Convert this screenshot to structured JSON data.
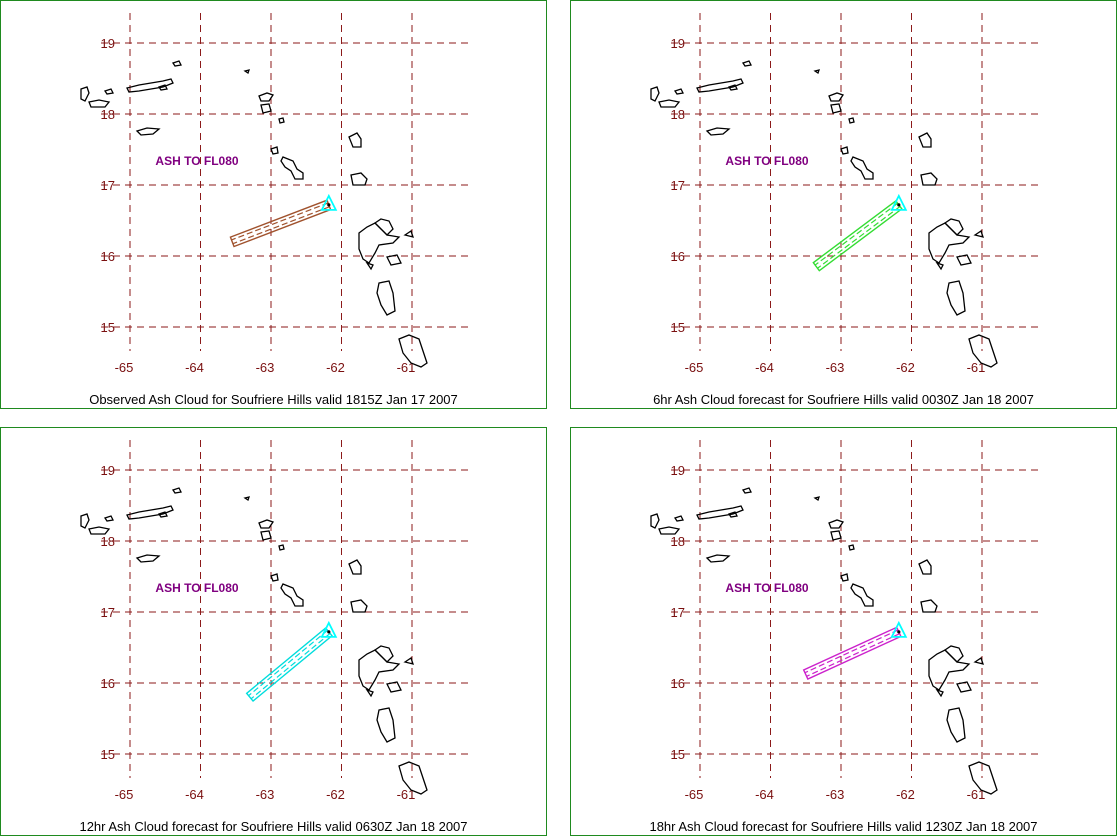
{
  "colors": {
    "grid": "#8b1a1a",
    "tick_text": "#7a1010",
    "coast": "#000000",
    "volcano": "#00ffff",
    "ash_label": "#800080",
    "border": "#1f8a1f"
  },
  "map": {
    "lon_ticks": [
      "-65",
      "-64",
      "-63",
      "-62",
      "-61"
    ],
    "lat_ticks": [
      "19",
      "18",
      "17",
      "16",
      "15"
    ],
    "lon_range": [
      -65,
      -61
    ],
    "lat_range": [
      15,
      19
    ]
  },
  "volcano": {
    "lon": -62.18,
    "lat": 16.72,
    "icon": "triangle-icon"
  },
  "panels": [
    {
      "label": "ASH TO FL080",
      "caption": "Observed Ash Cloud for Soufriere  Hills valid 1815Z Jan 17 2007",
      "ash_color": "#a0522d",
      "ash_tip": {
        "lon": -63.55,
        "lat": 16.2
      }
    },
    {
      "label": "ASH TO FL080",
      "caption": "6hr Ash Cloud forecast for Soufriere  Hills valid 0030Z Jan 18 2007",
      "ash_color": "#33dd33",
      "ash_tip": {
        "lon": -63.35,
        "lat": 15.85
      }
    },
    {
      "label": "ASH TO FL080",
      "caption": "12hr Ash Cloud forecast for Soufriere  Hills valid 0630Z Jan 18 2007",
      "ash_color": "#00dddd",
      "ash_tip": {
        "lon": -63.3,
        "lat": 15.8
      }
    },
    {
      "label": "ASH TO FL080",
      "caption": "18hr Ash Cloud forecast for Soufriere  Hills valid 1230Z Jan 18 2007",
      "ash_color": "#cc22cc",
      "ash_tip": {
        "lon": -63.5,
        "lat": 16.12
      }
    }
  ]
}
